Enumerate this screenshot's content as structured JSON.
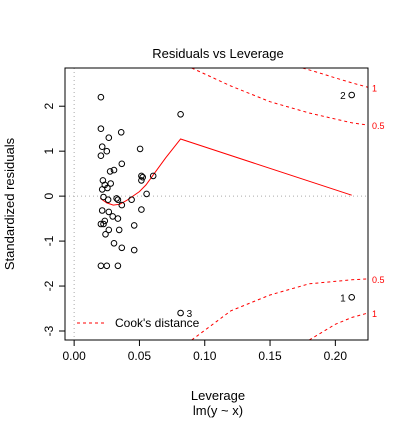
{
  "chart_data": {
    "type": "scatter",
    "title": "Residuals vs Leverage",
    "xlabel": "Leverage",
    "xsublabel": "lm(y ~ x)",
    "ylabel": "Standardized residuals",
    "xlim": [
      -0.007,
      0.225
    ],
    "ylim": [
      -3.2,
      2.85
    ],
    "xticks": [
      0.0,
      0.05,
      0.1,
      0.15,
      0.2
    ],
    "xtick_labels": [
      "0.00",
      "0.05",
      "0.10",
      "0.15",
      "0.20"
    ],
    "yticks": [
      -3,
      -2,
      -1,
      0,
      1,
      2
    ],
    "ytick_labels": [
      "-3",
      "-2",
      "-1",
      "0",
      "1",
      "2"
    ],
    "grid": false,
    "points": [
      {
        "x": 0.0205,
        "y": 2.2
      },
      {
        "x": 0.0205,
        "y": 1.5
      },
      {
        "x": 0.0215,
        "y": 1.1
      },
      {
        "x": 0.0205,
        "y": 0.9
      },
      {
        "x": 0.0265,
        "y": 1.3
      },
      {
        "x": 0.025,
        "y": 1.0
      },
      {
        "x": 0.036,
        "y": 1.42
      },
      {
        "x": 0.0275,
        "y": 0.55
      },
      {
        "x": 0.0305,
        "y": 0.58
      },
      {
        "x": 0.0365,
        "y": 0.72
      },
      {
        "x": 0.022,
        "y": 0.35
      },
      {
        "x": 0.0235,
        "y": 0.25
      },
      {
        "x": 0.0215,
        "y": 0.15
      },
      {
        "x": 0.0255,
        "y": 0.18
      },
      {
        "x": 0.028,
        "y": 0.28
      },
      {
        "x": 0.0225,
        "y": -0.02
      },
      {
        "x": 0.026,
        "y": -0.08
      },
      {
        "x": 0.0325,
        "y": -0.05
      },
      {
        "x": 0.0365,
        "y": -0.2
      },
      {
        "x": 0.0335,
        "y": -0.08
      },
      {
        "x": 0.0215,
        "y": -0.32
      },
      {
        "x": 0.0225,
        "y": -0.62
      },
      {
        "x": 0.0235,
        "y": -0.55
      },
      {
        "x": 0.0205,
        "y": -0.62
      },
      {
        "x": 0.024,
        "y": -0.85
      },
      {
        "x": 0.0265,
        "y": -0.75
      },
      {
        "x": 0.0265,
        "y": -0.35
      },
      {
        "x": 0.0295,
        "y": -0.45
      },
      {
        "x": 0.0335,
        "y": -0.5
      },
      {
        "x": 0.0345,
        "y": -0.75
      },
      {
        "x": 0.0305,
        "y": -1.05
      },
      {
        "x": 0.0365,
        "y": -1.15
      },
      {
        "x": 0.0205,
        "y": -1.55
      },
      {
        "x": 0.025,
        "y": -1.55
      },
      {
        "x": 0.0335,
        "y": -1.55
      },
      {
        "x": 0.044,
        "y": -0.08
      },
      {
        "x": 0.046,
        "y": -0.65
      },
      {
        "x": 0.046,
        "y": -1.2
      },
      {
        "x": 0.0505,
        "y": 1.05
      },
      {
        "x": 0.0515,
        "y": 0.45
      },
      {
        "x": 0.0515,
        "y": 0.35
      },
      {
        "x": 0.0525,
        "y": 0.42
      },
      {
        "x": 0.0515,
        "y": -0.3
      },
      {
        "x": 0.0555,
        "y": 0.05
      },
      {
        "x": 0.0605,
        "y": 0.45
      },
      {
        "x": 0.0815,
        "y": 1.82
      },
      {
        "x": 0.0815,
        "y": -2.6
      },
      {
        "x": 0.2125,
        "y": 2.25
      },
      {
        "x": 0.2125,
        "y": -2.25
      }
    ],
    "point_labels": [
      {
        "text": "2",
        "x": 0.2125,
        "y": 2.25,
        "side": "left"
      },
      {
        "text": "1",
        "x": 0.2125,
        "y": -2.25,
        "side": "left"
      },
      {
        "text": "3",
        "x": 0.0815,
        "y": -2.6,
        "side": "right"
      }
    ],
    "smooth_line": {
      "color": "#ff0000",
      "x": [
        0.02,
        0.025,
        0.03,
        0.035,
        0.04,
        0.045,
        0.05,
        0.055,
        0.06,
        0.07,
        0.0815,
        0.2125
      ],
      "y": [
        -0.05,
        -0.15,
        -0.2,
        -0.18,
        -0.1,
        0.0,
        0.1,
        0.25,
        0.45,
        0.85,
        1.27,
        0.02
      ]
    },
    "cooks_distance": {
      "color": "#ff0000",
      "legend": "Cook's distance",
      "legend_position": "bottom-left",
      "contours": [
        {
          "level": "0.5",
          "sign": 1,
          "x": [
            0.09,
            0.12,
            0.15,
            0.18,
            0.2125,
            0.225
          ],
          "y": [
            2.85,
            2.45,
            2.1,
            1.85,
            1.63,
            1.58
          ]
        },
        {
          "level": "1",
          "sign": 1,
          "x": [
            0.175,
            0.19,
            0.2,
            0.2125,
            0.225
          ],
          "y": [
            2.85,
            2.72,
            2.63,
            2.52,
            2.42
          ]
        },
        {
          "level": "0.5",
          "sign": -1,
          "x": [
            0.09,
            0.12,
            0.15,
            0.18,
            0.2125,
            0.225
          ],
          "y": [
            -3.2,
            -2.55,
            -2.2,
            -1.95,
            -1.86,
            -1.84
          ]
        },
        {
          "level": "1",
          "sign": -1,
          "x": [
            0.18,
            0.2,
            0.2125,
            0.225
          ],
          "y": [
            -3.2,
            -2.85,
            -2.7,
            -2.6
          ]
        }
      ]
    },
    "reference_lines": {
      "horizontal_zero": true,
      "vertical_zero": true,
      "color": "#aaaaaa"
    }
  }
}
